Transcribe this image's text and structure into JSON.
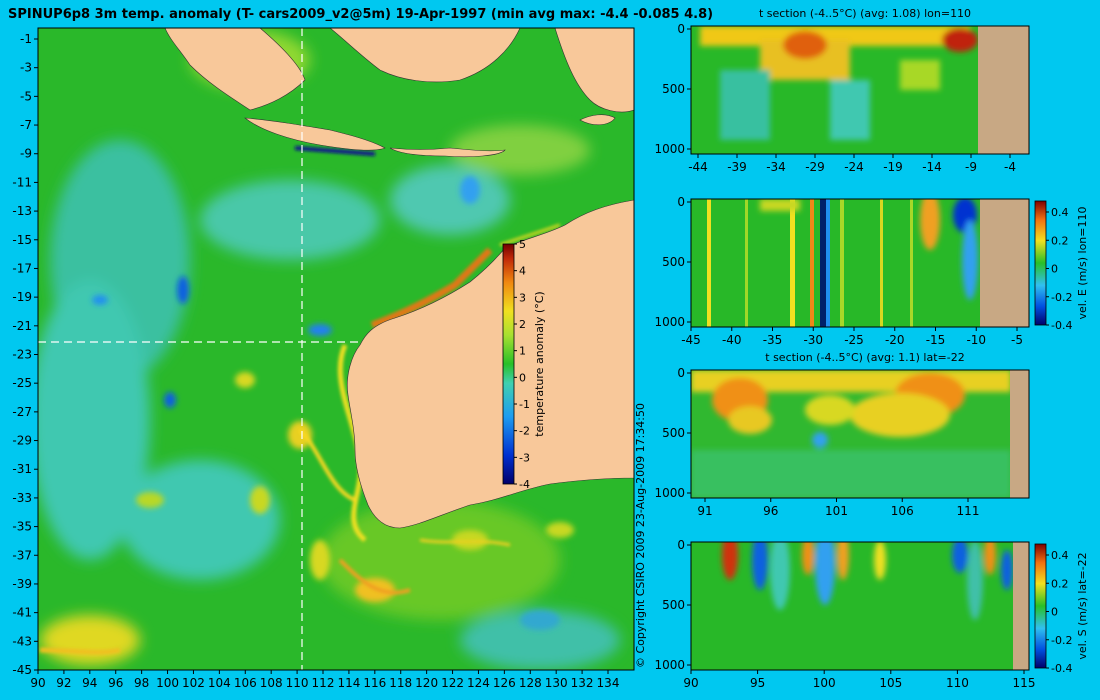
{
  "title": "SPINUP6p8 3m temp. anomaly (T- cars2009_v2@5m) 19-Apr-1997 (min avg max: -4.4 -0.085 4.8)",
  "copyright": "© Copyright CSIRO 2009   23-Aug-2009 17:34:50",
  "colors": {
    "background": "#00c8f0",
    "land": "#f8c89a",
    "section_land": "#c8a884",
    "ocean_base": "#2ab82a"
  },
  "chart_data": [
    {
      "type": "heatmap",
      "name_id": "map",
      "x_ticks": [
        "90",
        "92",
        "94",
        "96",
        "98",
        "100",
        "102",
        "104",
        "106",
        "108",
        "110",
        "112",
        "114",
        "116",
        "118",
        "120",
        "122",
        "124",
        "126",
        "128",
        "130",
        "132",
        "134"
      ],
      "y_ticks": [
        "-1",
        "-3",
        "-5",
        "-7",
        "-9",
        "-11",
        "-13",
        "-15",
        "-17",
        "-19",
        "-21",
        "-23",
        "-25",
        "-27",
        "-29",
        "-31",
        "-33",
        "-35",
        "-37",
        "-39",
        "-41",
        "-43",
        "-45"
      ],
      "xlim": [
        90,
        135
      ],
      "ylim": [
        -45,
        0
      ],
      "section_lon": 110,
      "section_lat": -22,
      "colorbar": {
        "label": "temperature anomaly (°C)",
        "ticks": [
          "5",
          "4",
          "3",
          "2",
          "1",
          "0",
          "-1",
          "-2",
          "-3",
          "-4"
        ],
        "range": [
          -4,
          5
        ]
      }
    },
    {
      "type": "heatmap",
      "name_id": "t_section_lon",
      "title": "t section (-4..5°C) (avg: 1.08) lon=110",
      "x_ticks": [
        "-44",
        "-39",
        "-34",
        "-29",
        "-24",
        "-19",
        "-14",
        "-9",
        "-4"
      ],
      "y_ticks": [
        "0",
        "500",
        "1000"
      ],
      "xlim": [
        -45,
        -1
      ],
      "ylim": [
        0,
        1050
      ]
    },
    {
      "type": "heatmap",
      "name_id": "vel_e_section",
      "x_ticks": [
        "-45",
        "-40",
        "-35",
        "-30",
        "-25",
        "-20",
        "-15",
        "-10",
        "-5"
      ],
      "y_ticks": [
        "0",
        "500",
        "1000"
      ],
      "xlim": [
        -45,
        -2
      ],
      "ylim": [
        0,
        1050
      ],
      "colorbar": {
        "label": "vel. E (m/s) lon=110",
        "ticks": [
          "0.4",
          "0.2",
          "0",
          "-0.2",
          "-0.4"
        ],
        "range": [
          -0.4,
          0.4
        ]
      }
    },
    {
      "type": "heatmap",
      "name_id": "t_section_lat",
      "title": "t section (-4..5°C) (avg: 1.1) lat=-22",
      "x_ticks": [
        "91",
        "96",
        "101",
        "106",
        "111"
      ],
      "y_ticks": [
        "0",
        "500",
        "1000"
      ],
      "xlim": [
        90,
        115
      ],
      "ylim": [
        0,
        1050
      ]
    },
    {
      "type": "heatmap",
      "name_id": "vel_s_section",
      "x_ticks": [
        "90",
        "95",
        "100",
        "105",
        "110",
        "115"
      ],
      "y_ticks": [
        "0",
        "500",
        "1000"
      ],
      "xlim": [
        90,
        115
      ],
      "ylim": [
        0,
        1050
      ],
      "colorbar": {
        "label": "vel. S (m/s) lat=-22",
        "ticks": [
          "0.4",
          "0.2",
          "0",
          "-0.2",
          "-0.4"
        ],
        "range": [
          -0.4,
          0.4
        ]
      }
    }
  ]
}
